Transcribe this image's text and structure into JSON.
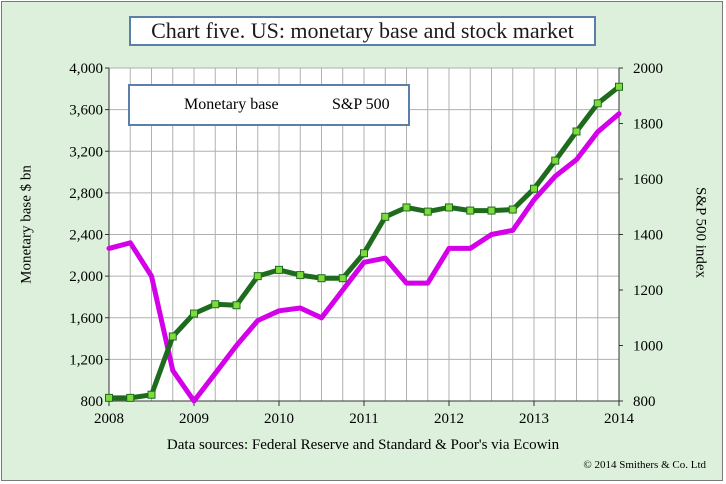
{
  "chart_data": {
    "type": "line",
    "title": "Chart five. US: monetary base and stock market",
    "xlabel": "",
    "ylabel": "Monetary base $ bn",
    "y2label": "S&P 500 index",
    "source": "Data sources: Federal Reserve and Standard & Poor's via Ecowin",
    "copyright": "© 2014 Smithers & Co. Ltd",
    "xlim": [
      2008,
      2014
    ],
    "ylim": [
      800,
      4000
    ],
    "y2lim": [
      800,
      2000
    ],
    "x_ticks": [
      "2008",
      "2009",
      "2010",
      "2011",
      "2012",
      "2013",
      "2014"
    ],
    "y_ticks": [
      "800",
      "1,200",
      "1,600",
      "2,000",
      "2,400",
      "2,800",
      "3,200",
      "3,600",
      "4,000"
    ],
    "y2_ticks": [
      "800",
      "1000",
      "1200",
      "1400",
      "1600",
      "1800",
      "2000"
    ],
    "legend_position": "top-left",
    "series": [
      {
        "name": "Monetary base",
        "axis": "left",
        "color": "#1e6b1e",
        "marker_color": "#7ddc3c",
        "x": [
          2008.0,
          2008.25,
          2008.5,
          2008.75,
          2009.0,
          2009.25,
          2009.5,
          2009.75,
          2010.0,
          2010.25,
          2010.5,
          2010.75,
          2011.0,
          2011.25,
          2011.5,
          2011.75,
          2012.0,
          2012.25,
          2012.5,
          2012.75,
          2013.0,
          2013.25,
          2013.5,
          2013.75,
          2014.0
        ],
        "values": [
          830,
          830,
          860,
          1420,
          1640,
          1730,
          1720,
          2000,
          2060,
          2010,
          1980,
          1980,
          2220,
          2570,
          2660,
          2620,
          2660,
          2630,
          2630,
          2640,
          2840,
          3110,
          3390,
          3660,
          3820
        ]
      },
      {
        "name": "S&P 500",
        "axis": "right",
        "color": "#d400ea",
        "x": [
          2008.0,
          2008.25,
          2008.5,
          2008.75,
          2009.0,
          2009.25,
          2009.5,
          2009.75,
          2010.0,
          2010.25,
          2010.5,
          2010.75,
          2011.0,
          2011.25,
          2011.5,
          2011.75,
          2012.0,
          2012.25,
          2012.5,
          2012.75,
          2013.0,
          2013.25,
          2013.5,
          2013.75,
          2014.0
        ],
        "values": [
          1350,
          1370,
          1250,
          910,
          800,
          900,
          1000,
          1090,
          1125,
          1135,
          1100,
          1200,
          1300,
          1315,
          1225,
          1225,
          1350,
          1350,
          1400,
          1415,
          1525,
          1610,
          1670,
          1770,
          1835
        ]
      }
    ]
  }
}
